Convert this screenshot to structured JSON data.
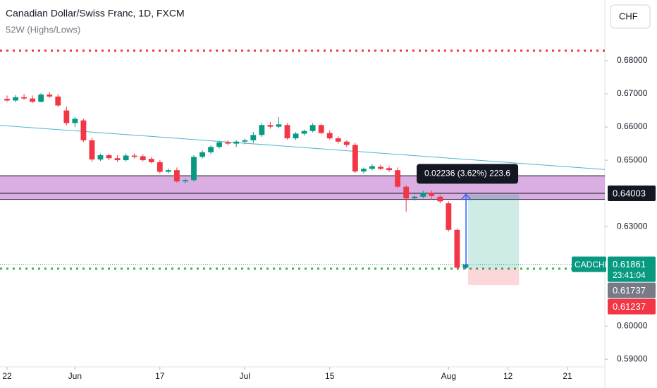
{
  "chart_data": {
    "type": "candlestick",
    "title": "Canadian Dollar/Swiss Franc, 1D, FXCM",
    "subtitle": "52W (Highs/Lows)",
    "currency_button": "CHF",
    "symbol": "CADCHF",
    "countdown": "23:41:04",
    "up_color": "#089981",
    "down_color": "#f23645",
    "x": [
      0,
      1,
      2,
      3,
      4,
      5,
      6,
      7,
      8,
      9,
      10,
      11,
      12,
      13,
      14,
      15,
      16,
      17,
      18,
      19,
      20,
      21,
      22,
      23,
      24,
      25,
      26,
      27,
      28,
      29,
      30,
      31,
      32,
      33,
      34,
      35,
      36,
      37,
      38,
      39,
      40,
      41,
      42,
      43,
      44,
      45,
      46,
      47,
      48,
      49,
      50,
      51,
      52,
      53,
      54
    ],
    "open": [
      0.6685,
      0.668,
      0.669,
      0.6686,
      0.6676,
      0.6698,
      0.6692,
      0.665,
      0.6612,
      0.662,
      0.656,
      0.6502,
      0.6515,
      0.6506,
      0.65,
      0.6514,
      0.6512,
      0.6504,
      0.6494,
      0.6465,
      0.647,
      0.6436,
      0.644,
      0.651,
      0.6524,
      0.654,
      0.6554,
      0.655,
      0.6556,
      0.656,
      0.6576,
      0.6606,
      0.6601,
      0.6606,
      0.6566,
      0.658,
      0.6588,
      0.6606,
      0.6582,
      0.6566,
      0.6556,
      0.6546,
      0.6466,
      0.6474,
      0.648,
      0.6476,
      0.647,
      0.642,
      0.6385,
      0.639,
      0.6402,
      0.639,
      0.637,
      0.629,
      0.6176
    ],
    "high": [
      0.6695,
      0.6697,
      0.67,
      0.6695,
      0.6702,
      0.6705,
      0.67,
      0.6662,
      0.663,
      0.6625,
      0.6568,
      0.652,
      0.652,
      0.6515,
      0.652,
      0.652,
      0.6518,
      0.651,
      0.65,
      0.6475,
      0.6478,
      0.6445,
      0.6515,
      0.653,
      0.6545,
      0.6558,
      0.656,
      0.656,
      0.6565,
      0.6585,
      0.6612,
      0.6615,
      0.663,
      0.6612,
      0.6585,
      0.6592,
      0.6612,
      0.661,
      0.659,
      0.6572,
      0.656,
      0.6552,
      0.6478,
      0.6488,
      0.6486,
      0.6482,
      0.6478,
      0.6425,
      0.6395,
      0.6408,
      0.6408,
      0.6395,
      0.6376,
      0.6295,
      0.6188
    ],
    "low": [
      0.6676,
      0.6675,
      0.6682,
      0.6672,
      0.6674,
      0.6688,
      0.666,
      0.6605,
      0.66,
      0.6555,
      0.6495,
      0.6498,
      0.65,
      0.6495,
      0.6496,
      0.6505,
      0.6496,
      0.649,
      0.646,
      0.646,
      0.6432,
      0.643,
      0.6436,
      0.6505,
      0.6518,
      0.6535,
      0.6545,
      0.654,
      0.6548,
      0.6552,
      0.657,
      0.6595,
      0.6596,
      0.6562,
      0.656,
      0.6575,
      0.6584,
      0.6578,
      0.6562,
      0.655,
      0.654,
      0.6462,
      0.646,
      0.647,
      0.647,
      0.6465,
      0.6415,
      0.6345,
      0.6378,
      0.6385,
      0.638,
      0.637,
      0.6285,
      0.6172,
      0.6172
    ],
    "close": [
      0.668,
      0.669,
      0.6686,
      0.6676,
      0.6698,
      0.6692,
      0.6665,
      0.6612,
      0.6625,
      0.656,
      0.6502,
      0.6515,
      0.6506,
      0.65,
      0.6514,
      0.651,
      0.65,
      0.6494,
      0.6465,
      0.647,
      0.6436,
      0.644,
      0.651,
      0.6524,
      0.654,
      0.6554,
      0.655,
      0.6556,
      0.656,
      0.6576,
      0.6606,
      0.6601,
      0.6608,
      0.6566,
      0.658,
      0.6588,
      0.6606,
      0.6582,
      0.6566,
      0.6556,
      0.6546,
      0.6466,
      0.6474,
      0.6482,
      0.6474,
      0.647,
      0.642,
      0.6385,
      0.639,
      0.6402,
      0.6392,
      0.6376,
      0.629,
      0.6176,
      0.6186
    ],
    "xlim": [
      -0.83,
      70.4
    ],
    "xticks": [
      {
        "value": 0,
        "label": "22"
      },
      {
        "value": 8,
        "label": "Jun"
      },
      {
        "value": 18,
        "label": "17"
      },
      {
        "value": 28,
        "label": "Jul"
      },
      {
        "value": 38,
        "label": "15"
      },
      {
        "value": 52,
        "label": "Aug"
      },
      {
        "value": 59,
        "label": "12"
      },
      {
        "value": 66,
        "label": "21"
      }
    ],
    "ylim": [
      0.5877,
      0.6983
    ],
    "yticks": [
      {
        "value": 0.68,
        "label": "0.68000"
      },
      {
        "value": 0.67,
        "label": "0.67000"
      },
      {
        "value": 0.66,
        "label": "0.66000"
      },
      {
        "value": 0.65,
        "label": "0.65000"
      },
      {
        "value": 0.63,
        "label": "0.63000"
      },
      {
        "value": 0.6,
        "label": "0.60000"
      },
      {
        "value": 0.59,
        "label": "0.59000"
      }
    ],
    "high_52w": 0.683,
    "low_52w": 0.6173,
    "zone": {
      "top": 0.6453,
      "bottom": 0.6382,
      "color": "#ce93d8"
    },
    "hlines": [
      0.6453,
      0.64003,
      0.6382
    ],
    "hline_label": {
      "value": 0.64003,
      "label": "0.64003"
    },
    "trendline": {
      "x": [
        -0.83,
        70.4
      ],
      "y": [
        0.6605,
        0.6472
      ],
      "color": "#4fb3d0"
    },
    "last_price": {
      "value": 0.61861,
      "label": "0.61861"
    },
    "position": {
      "x": [
        54.3,
        60.3
      ],
      "entry": {
        "value": 0.61737,
        "label": "0.61737"
      },
      "stop": {
        "value": 0.61237,
        "label": "0.61237"
      },
      "target": 0.63973
    },
    "measure_label": "0.02236 (3.62%) 223.6"
  }
}
